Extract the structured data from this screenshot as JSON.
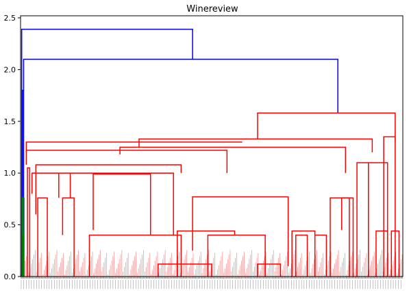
{
  "chart_data": {
    "type": "dendrogram",
    "title": "Winereview",
    "xlabel": "",
    "ylabel": "",
    "ylim": [
      0,
      2.52
    ],
    "yticks": [
      "0.0",
      "0.5",
      "1.0",
      "1.5",
      "2.0",
      "2.5"
    ],
    "ytick_values": [
      0.0,
      0.5,
      1.0,
      1.5,
      2.0,
      2.5
    ],
    "grid": false,
    "leaf_count": 300,
    "colors": {
      "top": "#0000ff",
      "cluster_a": "#008000",
      "cluster_b": "#ff0000",
      "axis": "#000000"
    },
    "links": [
      {
        "x": [
          0.3,
          0.3,
          45,
          45
        ],
        "y": [
          0.0,
          2.39,
          2.39,
          2.1
        ],
        "color": "top"
      },
      {
        "x": [
          0.8,
          0.8,
          83,
          83
        ],
        "y": [
          1.8,
          2.1,
          2.1,
          1.58
        ],
        "color": "top"
      },
      {
        "x": [
          0.5,
          0.5,
          0.8,
          0.8
        ],
        "y": [
          0.0,
          1.8,
          1.8,
          0.0
        ],
        "color": "top"
      },
      {
        "x": [
          0.5,
          0.5,
          0.9,
          0.9
        ],
        "y": [
          0.0,
          0.76,
          0.76,
          0.0
        ],
        "color": "cluster_a"
      },
      {
        "x": [
          0.55,
          0.55,
          0.75,
          0.75
        ],
        "y": [
          0.0,
          0.4,
          0.4,
          0.0
        ],
        "color": "cluster_a"
      },
      {
        "x": [
          62,
          62,
          98,
          98
        ],
        "y": [
          1.33,
          1.58,
          1.58,
          1.3
        ],
        "color": "cluster_b"
      },
      {
        "x": [
          31,
          31,
          92,
          92
        ],
        "y": [
          1.25,
          1.33,
          1.33,
          1.2
        ],
        "color": "cluster_b"
      },
      {
        "x": [
          1.5,
          1.5,
          58,
          58
        ],
        "y": [
          1.08,
          1.3,
          1.3,
          1.3
        ],
        "color": "cluster_b"
      },
      {
        "x": [
          1.5,
          1.5,
          54,
          54
        ],
        "y": [
          1.2,
          1.22,
          1.22,
          1.0
        ],
        "color": "cluster_b"
      },
      {
        "x": [
          26,
          26,
          85,
          85
        ],
        "y": [
          1.18,
          1.25,
          1.25,
          1.0
        ],
        "color": "cluster_b"
      },
      {
        "x": [
          4,
          4,
          42,
          42
        ],
        "y": [
          0.6,
          1.08,
          1.08,
          1.0
        ],
        "color": "cluster_b"
      },
      {
        "x": [
          3,
          3,
          40,
          40
        ],
        "y": [
          0.8,
          1.0,
          1.0,
          0.4
        ],
        "color": "cluster_b"
      },
      {
        "x": [
          10,
          10,
          13,
          13
        ],
        "y": [
          0.76,
          1.0,
          1.0,
          0.76
        ],
        "color": "cluster_b"
      },
      {
        "x": [
          4.5,
          4.5,
          7,
          7
        ],
        "y": [
          0.0,
          0.76,
          0.76,
          0.0
        ],
        "color": "cluster_b"
      },
      {
        "x": [
          11,
          11,
          14,
          14
        ],
        "y": [
          0.4,
          0.76,
          0.76,
          0.0
        ],
        "color": "cluster_b"
      },
      {
        "x": [
          1.8,
          1.8,
          2.4,
          2.4
        ],
        "y": [
          0.0,
          1.05,
          1.05,
          0.0
        ],
        "color": "cluster_b"
      },
      {
        "x": [
          19,
          19,
          34,
          34
        ],
        "y": [
          0.45,
          0.99,
          0.99,
          0.4
        ],
        "color": "cluster_b"
      },
      {
        "x": [
          45,
          45,
          70,
          70
        ],
        "y": [
          0.25,
          0.77,
          0.77,
          0.1
        ],
        "color": "cluster_b"
      },
      {
        "x": [
          41,
          41,
          56,
          56
        ],
        "y": [
          0.0,
          0.44,
          0.44,
          0.4
        ],
        "color": "cluster_b"
      },
      {
        "x": [
          18,
          18,
          42,
          42
        ],
        "y": [
          0.0,
          0.4,
          0.4,
          0.0
        ],
        "color": "cluster_b"
      },
      {
        "x": [
          49,
          49,
          64,
          64
        ],
        "y": [
          0.0,
          0.4,
          0.4,
          0.0
        ],
        "color": "cluster_b"
      },
      {
        "x": [
          36,
          36,
          50,
          50
        ],
        "y": [
          0.0,
          0.12,
          0.12,
          0.0
        ],
        "color": "cluster_b"
      },
      {
        "x": [
          62,
          62,
          68,
          68
        ],
        "y": [
          0.0,
          0.12,
          0.12,
          0.0
        ],
        "color": "cluster_b"
      },
      {
        "x": [
          71,
          71,
          77,
          77
        ],
        "y": [
          0.0,
          0.44,
          0.44,
          0.4
        ],
        "color": "cluster_b"
      },
      {
        "x": [
          72,
          72,
          75,
          75
        ],
        "y": [
          0.0,
          0.4,
          0.4,
          0.0
        ],
        "color": "cluster_b"
      },
      {
        "x": [
          77,
          77,
          80,
          80
        ],
        "y": [
          0.0,
          0.4,
          0.4,
          0.0
        ],
        "color": "cluster_b"
      },
      {
        "x": [
          81,
          81,
          87,
          87
        ],
        "y": [
          0.0,
          0.76,
          0.76,
          0.0
        ],
        "color": "cluster_b"
      },
      {
        "x": [
          84,
          84,
          86,
          86
        ],
        "y": [
          0.45,
          0.76,
          0.76,
          0.0
        ],
        "color": "cluster_b"
      },
      {
        "x": [
          88,
          88,
          91,
          91
        ],
        "y": [
          0.0,
          1.1,
          1.1,
          0.0
        ],
        "color": "cluster_b"
      },
      {
        "x": [
          91,
          91,
          96,
          96
        ],
        "y": [
          0.0,
          1.1,
          1.1,
          0.0
        ],
        "color": "cluster_b"
      },
      {
        "x": [
          93,
          93,
          96,
          96
        ],
        "y": [
          0.0,
          0.44,
          0.44,
          0.0
        ],
        "color": "cluster_b"
      },
      {
        "x": [
          95,
          95,
          98,
          98
        ],
        "y": [
          0.0,
          1.35,
          1.35,
          0.0
        ],
        "color": "cluster_b"
      },
      {
        "x": [
          97,
          97,
          99,
          99
        ],
        "y": [
          0.0,
          0.44,
          0.44,
          0.0
        ],
        "color": "cluster_b"
      }
    ]
  }
}
